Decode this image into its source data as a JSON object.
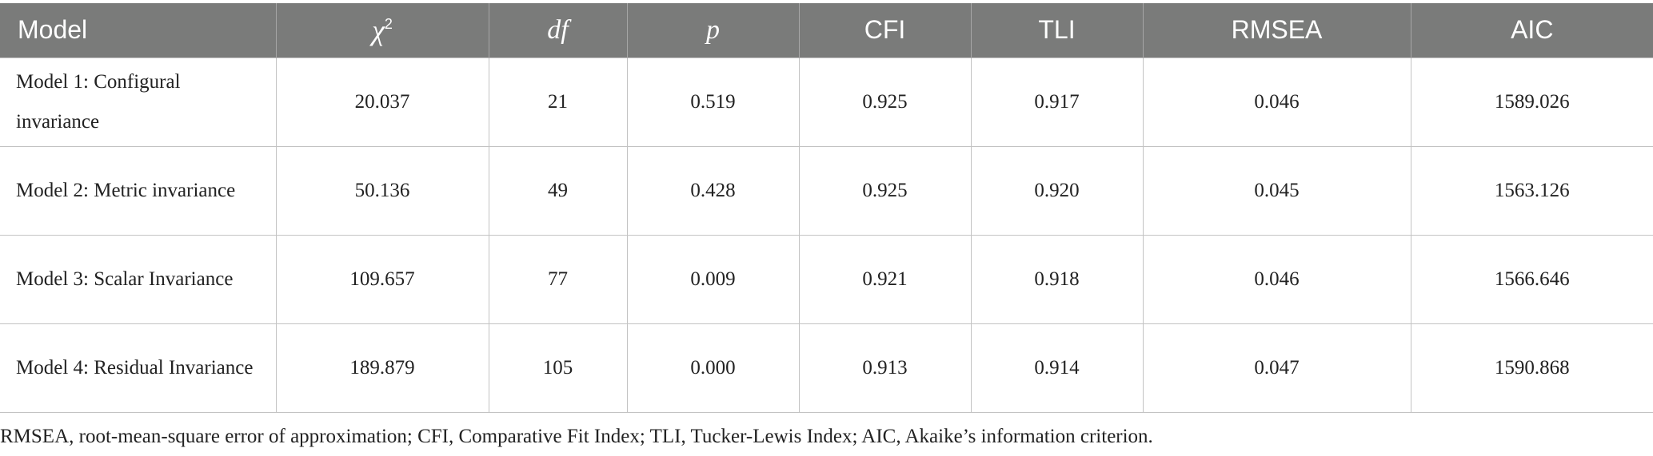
{
  "table": {
    "headers": {
      "model": "Model",
      "chi_symbol": "χ",
      "chi_sup": "2",
      "df": "df",
      "p": "p",
      "cfi": "CFI",
      "tli": "TLI",
      "rmsea": "RMSEA",
      "aic": "AIC"
    },
    "rows": [
      {
        "model": "Model 1: Configural invariance",
        "chi2": "20.037",
        "df": "21",
        "p": "0.519",
        "cfi": "0.925",
        "tli": "0.917",
        "rmsea": "0.046",
        "aic": "1589.026"
      },
      {
        "model": "Model 2: Metric invariance",
        "chi2": "50.136",
        "df": "49",
        "p": "0.428",
        "cfi": "0.925",
        "tli": "0.920",
        "rmsea": "0.045",
        "aic": "1563.126"
      },
      {
        "model": "Model 3: Scalar Invariance",
        "chi2": "109.657",
        "df": "77",
        "p": "0.009",
        "cfi": "0.921",
        "tli": "0.918",
        "rmsea": "0.046",
        "aic": "1566.646"
      },
      {
        "model": "Model 4: Residual Invariance",
        "chi2": "189.879",
        "df": "105",
        "p": "0.000",
        "cfi": "0.913",
        "tli": "0.914",
        "rmsea": "0.047",
        "aic": "1590.868"
      }
    ]
  },
  "footnote": "RMSEA, root-mean-square error of approximation; CFI, Comparative Fit Index; TLI, Tucker-Lewis Index; AIC, Akaike’s information criterion.",
  "colors": {
    "header_bg": "#7a7b7a",
    "header_text": "#ffffff",
    "grid": "#c3c3c3"
  }
}
